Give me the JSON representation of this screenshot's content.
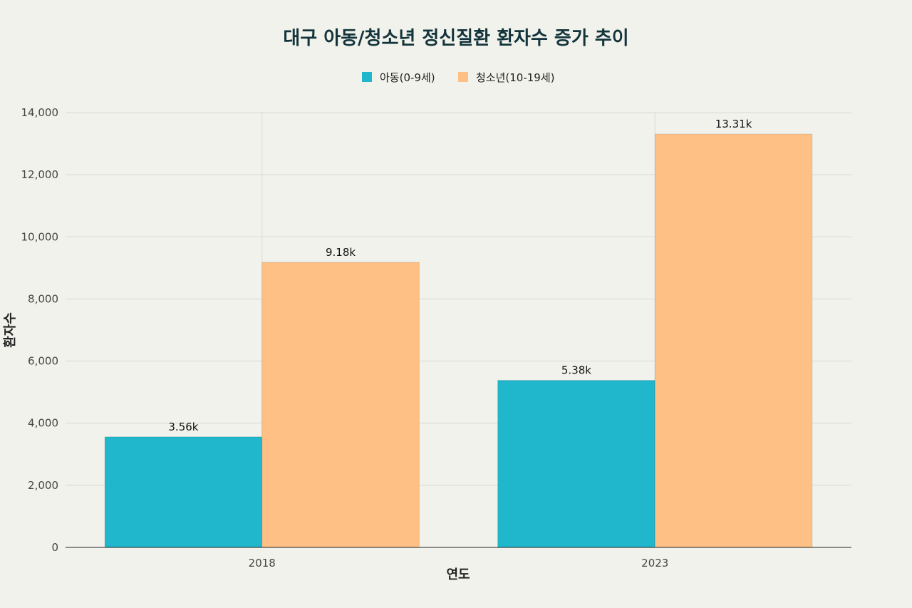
{
  "chart_data": {
    "type": "bar",
    "title": "대구 아동/청소년 정신질환 환자수 증가 추이",
    "xlabel": "연도",
    "ylabel": "환자수",
    "categories": [
      "2018",
      "2023"
    ],
    "ylim": [
      0,
      14000
    ],
    "yticks": [
      0,
      2000,
      4000,
      6000,
      8000,
      10000,
      12000,
      14000
    ],
    "ytick_labels": [
      "0",
      "2,000",
      "4,000",
      "6,000",
      "8,000",
      "10,000",
      "12,000",
      "14,000"
    ],
    "legend_position": "top-center",
    "grid": true,
    "series": [
      {
        "name": "아동(0-9세)",
        "color": "#20b6cb",
        "values": [
          3560,
          5380
        ],
        "labels": [
          "3.56k",
          "5.38k"
        ]
      },
      {
        "name": "청소년(10-19세)",
        "color": "#ffc085",
        "values": [
          9180,
          13310
        ],
        "labels": [
          "9.18k",
          "13.31k"
        ]
      }
    ]
  }
}
